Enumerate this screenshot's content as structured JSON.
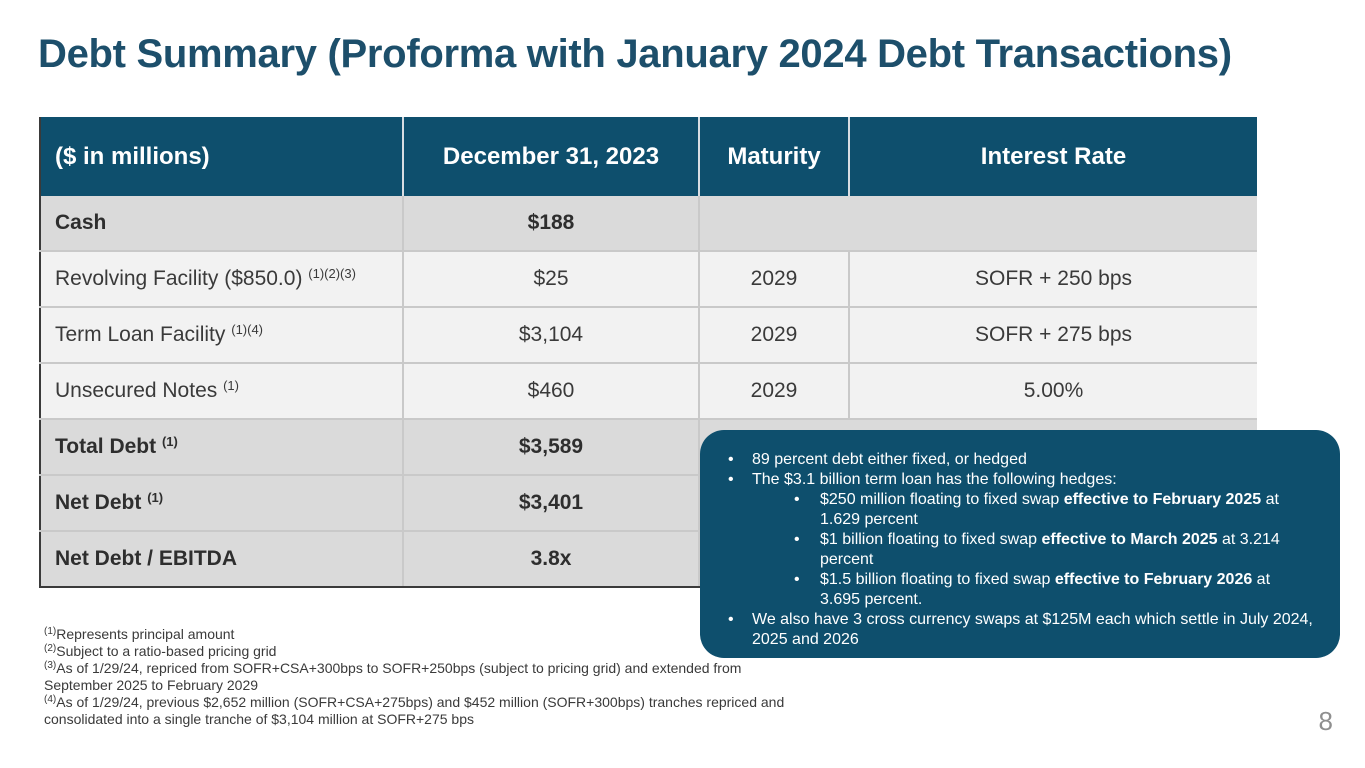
{
  "title": "Debt Summary (Proforma with January 2024 Debt Transactions)",
  "table": {
    "headers": [
      "($ in millions)",
      "December 31, 2023",
      "Maturity",
      "Interest Rate"
    ],
    "rows": [
      {
        "label": "Cash",
        "note": "",
        "value": "$188",
        "maturity": "",
        "rate": ""
      },
      {
        "label": "Revolving Facility ($850.0)",
        "note": "(1)(2)(3)",
        "value": "$25",
        "maturity": "2029",
        "rate": "SOFR + 250 bps"
      },
      {
        "label": "Term Loan Facility",
        "note": "(1)(4)",
        "value": "$3,104",
        "maturity": "2029",
        "rate": "SOFR + 275 bps"
      },
      {
        "label": "Unsecured Notes",
        "note": "(1)",
        "value": "$460",
        "maturity": "2029",
        "rate": "5.00%"
      },
      {
        "label": "Total Debt",
        "note": "(1)",
        "value": "$3,589",
        "maturity": "",
        "rate": ""
      },
      {
        "label": "Net Debt",
        "note": "(1)",
        "value": "$3,401",
        "maturity": "",
        "rate": ""
      },
      {
        "label": "Net Debt / EBITDA",
        "note": "",
        "value": "3.8x",
        "maturity": "",
        "rate": ""
      }
    ]
  },
  "callout": {
    "b1": "89 percent debt either fixed, or hedged",
    "b2": "The $3.1 billion term loan has the following hedges:",
    "s1_pre": "$250 million floating to fixed swap ",
    "s1_bold": "effective to February 2025",
    "s1_post": " at 1.629 percent",
    "s2_pre": "$1 billion floating to fixed swap ",
    "s2_bold": "effective to March 2025",
    "s2_post": " at 3.214 percent",
    "s3_pre": "$1.5 billion floating to fixed swap ",
    "s3_bold": "effective to February 2026",
    "s3_post": " at 3.695 percent.",
    "b3": "We also have 3 cross currency swaps at $125M each which settle in July 2024, 2025 and 2026"
  },
  "footnotes": [
    {
      "mark": "(1)",
      "text": "Represents principal amount"
    },
    {
      "mark": "(2)",
      "text": "Subject to a ratio-based pricing grid"
    },
    {
      "mark": "(3)",
      "text": "As of 1/29/24, repriced from SOFR+CSA+300bps to SOFR+250bps (subject to pricing grid) and extended from September 2025 to February 2029"
    },
    {
      "mark": "(4)",
      "text": "As of 1/29/24, previous $2,652 million (SOFR+CSA+275bps) and $452 million (SOFR+300bps) tranches repriced and consolidated into a single tranche of $3,104 million at SOFR+275 bps"
    }
  ],
  "page_number": "8"
}
